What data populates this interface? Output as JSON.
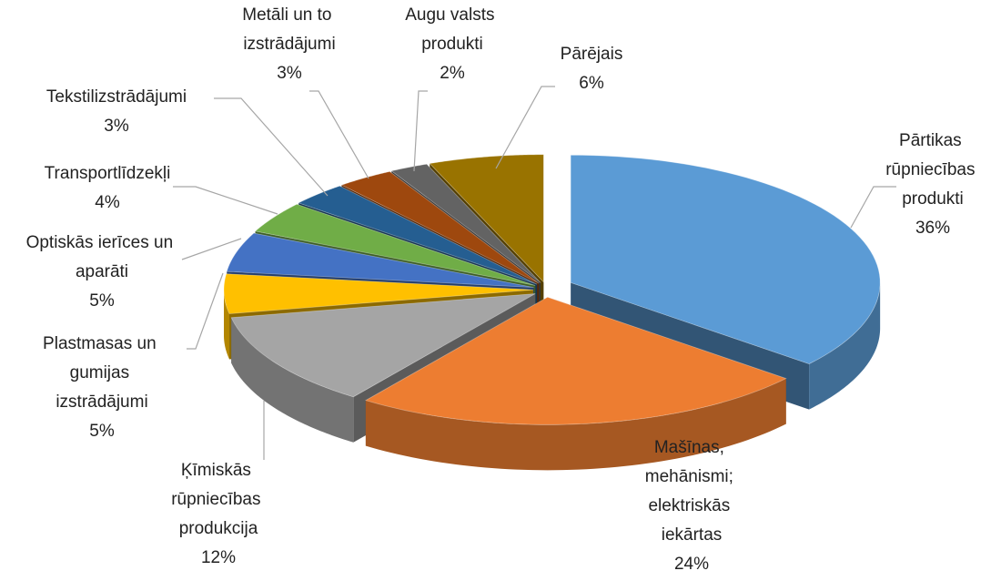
{
  "chart_data": {
    "type": "pie3d",
    "categories": [
      "Pārtikas rūpniecības produkti",
      "Mašīnas, mehānismi; elektriskās iekārtas",
      "Ķīmiskās rūpniecības produkcija",
      "Plastmasas un gumijas izstrādājumi",
      "Optiskās ierīces un aparāti",
      "Transportlīdzekļi",
      "Tekstilizstrādājumi",
      "Metāli un to izstrādājumi",
      "Augu valsts produkti",
      "Pārējais"
    ],
    "values": [
      36,
      24,
      12,
      5,
      5,
      4,
      3,
      3,
      2,
      6
    ],
    "value_labels": [
      "36%",
      "24%",
      "12%",
      "5%",
      "5%",
      "4%",
      "3%",
      "3%",
      "2%",
      "6%"
    ],
    "colors": [
      "#5b9bd5",
      "#ed7d31",
      "#a5a5a5",
      "#ffc000",
      "#4472c4",
      "#70ad47",
      "#255e91",
      "#9e480e",
      "#636363",
      "#997300"
    ]
  }
}
